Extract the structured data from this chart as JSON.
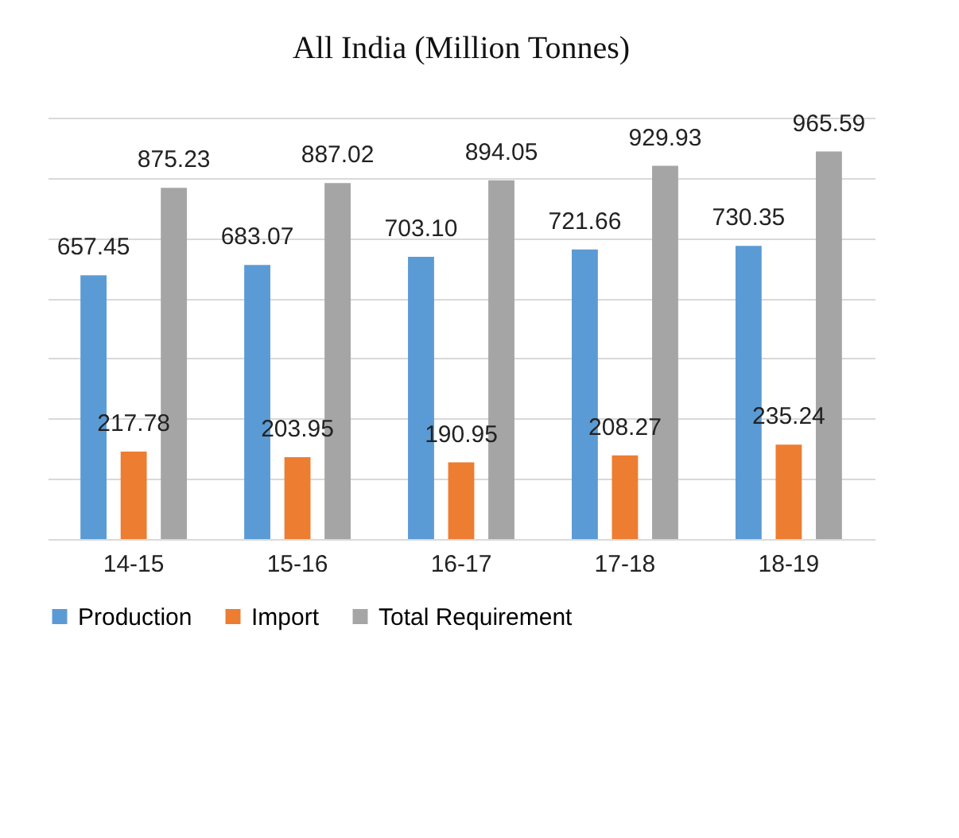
{
  "chart_data": {
    "type": "bar",
    "title": "All India (Million Tonnes)",
    "categories": [
      "14-15",
      "15-16",
      "16-17",
      "17-18",
      "18-19"
    ],
    "series": [
      {
        "name": "Production",
        "color": "#5b9bd5",
        "values": [
          657.45,
          683.07,
          703.1,
          721.66,
          730.35
        ],
        "value_labels": [
          "657.45",
          "683.07",
          "703.10",
          "721.66",
          "730.35"
        ]
      },
      {
        "name": "Import",
        "color": "#ed7d31",
        "values": [
          217.78,
          203.95,
          190.95,
          208.27,
          235.24
        ],
        "value_labels": [
          "217.78",
          "203.95",
          "190.95",
          "208.27",
          "235.24"
        ]
      },
      {
        "name": "Total Requirement",
        "color": "#a5a5a5",
        "values": [
          875.23,
          887.02,
          894.05,
          929.93,
          965.59
        ],
        "value_labels": [
          "875.23",
          "887.02",
          "894.05",
          "929.93",
          "965.59"
        ]
      }
    ],
    "ylim": [
      0,
      1050
    ],
    "yticks": [
      {
        "value": 0,
        "label": null
      },
      {
        "value": 150,
        "label": null
      },
      {
        "value": 300,
        "label": null
      },
      {
        "value": 450,
        "label": null
      },
      {
        "value": 600,
        "label": null
      },
      {
        "value": 750,
        "label": null
      },
      {
        "value": 900,
        "label": null
      },
      {
        "value": 1050,
        "label": null
      }
    ],
    "grid": "y",
    "legend": "bottom",
    "tick_labels": "x"
  }
}
